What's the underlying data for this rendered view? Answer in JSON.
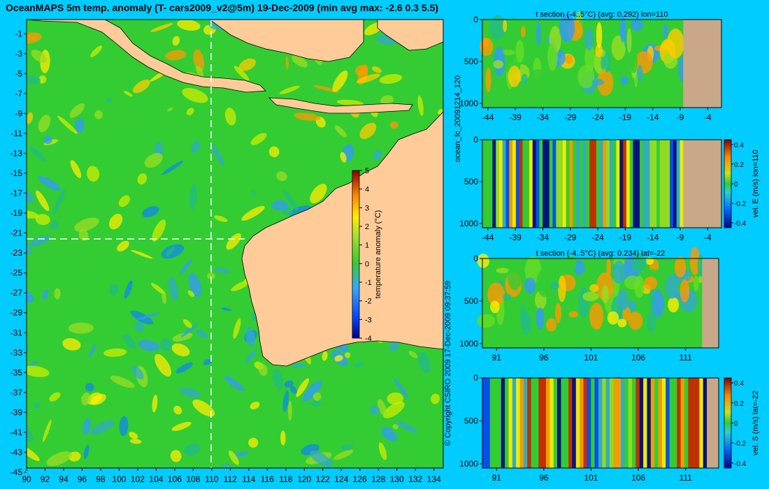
{
  "map": {
    "title": "OceanMAPS 5m temp. anomaly (T- cars2009_v2@5m) 19-Dec-2009 (min avg max: -2.6 0.3 5.5)",
    "lat_labels": [
      "-1",
      "-3",
      "-5",
      "-7",
      "-9",
      "-11",
      "-13",
      "-15",
      "-17",
      "-19",
      "-21",
      "-23",
      "-25",
      "-27",
      "-29",
      "-31",
      "-33",
      "-35",
      "-37",
      "-39",
      "-41",
      "-43",
      "-45"
    ],
    "lon_labels": [
      "90",
      "92",
      "94",
      "96",
      "98",
      "100",
      "102",
      "104",
      "106",
      "108",
      "110",
      "112",
      "114",
      "116",
      "118",
      "120",
      "122",
      "124",
      "126",
      "128",
      "130",
      "132",
      "134"
    ],
    "colorbar": {
      "label": "temperature anomaly (°C)",
      "ticks": [
        "5",
        "4",
        "3",
        "2",
        "1",
        "0",
        "-1",
        "-2",
        "-3",
        "-4"
      ],
      "min": -4,
      "max": 5
    },
    "crosshair": {
      "lon": 110,
      "lat": -22
    }
  },
  "side_text": {
    "model_run": "ocean_fc_20091214_120",
    "copyright": "© Copyright CSIRO 2009  17-Dec-2009 09:37:59"
  },
  "panels": [
    {
      "title": "t section (-4..5°C) (avg: 0.292) lon=110",
      "x_ticks": [
        "-44",
        "-39",
        "-34",
        "-29",
        "-24",
        "-19",
        "-14",
        "-9",
        "-4"
      ],
      "y_ticks": [
        "0",
        "500",
        "1000"
      ]
    },
    {
      "title": "",
      "x_ticks": [
        "-44",
        "-39",
        "-34",
        "-29",
        "-24",
        "-19",
        "-14",
        "-9",
        "-4"
      ],
      "y_ticks": [
        "0",
        "500",
        "1000"
      ],
      "colorbar": {
        "label": "vel. E (m/s) lon=110",
        "ticks": [
          "0.4",
          "0.2",
          "0",
          "-0.2",
          "-0.4"
        ]
      }
    },
    {
      "title": "t section (-4..5°C) (avg: 0.234) lat=-22",
      "x_ticks": [
        "91",
        "96",
        "101",
        "106",
        "111"
      ],
      "y_ticks": [
        "0",
        "500",
        "1000"
      ]
    },
    {
      "title": "",
      "x_ticks": [
        "91",
        "96",
        "101",
        "106",
        "111"
      ],
      "y_ticks": [
        "0",
        "500",
        "1000"
      ],
      "colorbar": {
        "label": "vel. S (m/s) lat=-22",
        "ticks": [
          "0.4",
          "0.2",
          "0",
          "-0.2",
          "-0.4"
        ]
      }
    }
  ],
  "colors": {
    "background": "#00ccff",
    "land": "#ffcc99",
    "section_land": "#c8a888",
    "ocean_base": "#33cc33"
  }
}
